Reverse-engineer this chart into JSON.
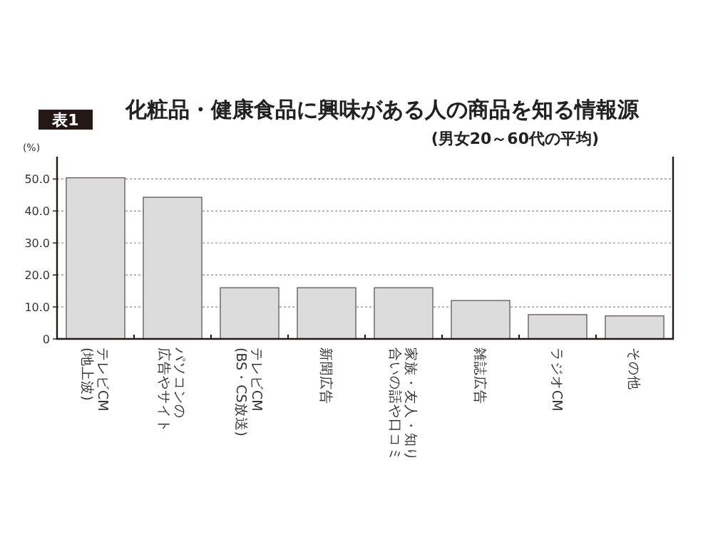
{
  "chart_data": {
    "type": "bar",
    "title": "化粧品・健康食品に興味がある人の商品を知る情報源",
    "subtitle": "(男女20～60代の平均)",
    "ylabel": "(%)",
    "annotations": [
      "表1"
    ],
    "categories": [
      "テレビCM(地上波)",
      "パソコンの広告やサイト",
      "テレビCM(BS・CS放送)",
      "新聞広告",
      "家族・友人・知り合いの話や口コミ",
      "雑誌広告",
      "ラジオCM",
      "その他"
    ],
    "values": [
      50.4,
      44.3,
      16.0,
      16.0,
      16.0,
      12.0,
      7.6,
      7.2
    ],
    "color": "#dcdcdc",
    "ylim": [
      0,
      57
    ],
    "yticks": [
      0,
      {
        "value": 10,
        "label": "10.0"
      },
      {
        "value": 20,
        "label": "20.0"
      },
      {
        "value": 30,
        "label": "30.0"
      },
      {
        "value": 40,
        "label": "40.0"
      },
      {
        "value": 50,
        "label": "50.0"
      }
    ],
    "grid": "y"
  }
}
